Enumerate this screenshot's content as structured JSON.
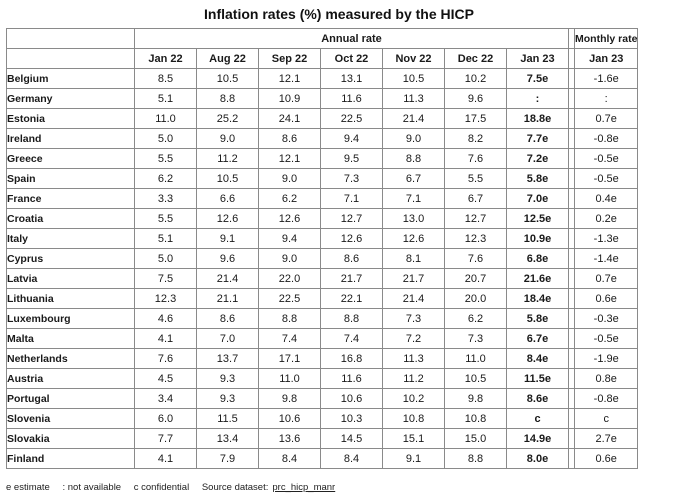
{
  "title": "Inflation rates (%) measured by the HICP",
  "header": {
    "annual_rate": "Annual rate",
    "monthly_rate": "Monthly rate",
    "columns": [
      "Jan 22",
      "Aug 22",
      "Sep 22",
      "Oct 22",
      "Nov 22",
      "Dec 22",
      "Jan 23"
    ],
    "monthly_column": "Jan 23"
  },
  "rows": [
    {
      "country": "Belgium",
      "values": [
        "8.5",
        "10.5",
        "12.1",
        "13.1",
        "10.5",
        "10.2",
        "7.5e"
      ],
      "monthly": "-1.6e"
    },
    {
      "country": "Germany",
      "values": [
        "5.1",
        "8.8",
        "10.9",
        "11.6",
        "11.3",
        "9.6",
        ":"
      ],
      "monthly": ":"
    },
    {
      "country": "Estonia",
      "values": [
        "11.0",
        "25.2",
        "24.1",
        "22.5",
        "21.4",
        "17.5",
        "18.8e"
      ],
      "monthly": "0.7e"
    },
    {
      "country": "Ireland",
      "values": [
        "5.0",
        "9.0",
        "8.6",
        "9.4",
        "9.0",
        "8.2",
        "7.7e"
      ],
      "monthly": "-0.8e"
    },
    {
      "country": "Greece",
      "values": [
        "5.5",
        "11.2",
        "12.1",
        "9.5",
        "8.8",
        "7.6",
        "7.2e"
      ],
      "monthly": "-0.5e"
    },
    {
      "country": "Spain",
      "values": [
        "6.2",
        "10.5",
        "9.0",
        "7.3",
        "6.7",
        "5.5",
        "5.8e"
      ],
      "monthly": "-0.5e"
    },
    {
      "country": "France",
      "values": [
        "3.3",
        "6.6",
        "6.2",
        "7.1",
        "7.1",
        "6.7",
        "7.0e"
      ],
      "monthly": "0.4e"
    },
    {
      "country": "Croatia",
      "values": [
        "5.5",
        "12.6",
        "12.6",
        "12.7",
        "13.0",
        "12.7",
        "12.5e"
      ],
      "monthly": "0.2e"
    },
    {
      "country": "Italy",
      "values": [
        "5.1",
        "9.1",
        "9.4",
        "12.6",
        "12.6",
        "12.3",
        "10.9e"
      ],
      "monthly": "-1.3e"
    },
    {
      "country": "Cyprus",
      "values": [
        "5.0",
        "9.6",
        "9.0",
        "8.6",
        "8.1",
        "7.6",
        "6.8e"
      ],
      "monthly": "-1.4e"
    },
    {
      "country": "Latvia",
      "values": [
        "7.5",
        "21.4",
        "22.0",
        "21.7",
        "21.7",
        "20.7",
        "21.6e"
      ],
      "monthly": "0.7e"
    },
    {
      "country": "Lithuania",
      "values": [
        "12.3",
        "21.1",
        "22.5",
        "22.1",
        "21.4",
        "20.0",
        "18.4e"
      ],
      "monthly": "0.6e"
    },
    {
      "country": "Luxembourg",
      "values": [
        "4.6",
        "8.6",
        "8.8",
        "8.8",
        "7.3",
        "6.2",
        "5.8e"
      ],
      "monthly": "-0.3e"
    },
    {
      "country": "Malta",
      "values": [
        "4.1",
        "7.0",
        "7.4",
        "7.4",
        "7.2",
        "7.3",
        "6.7e"
      ],
      "monthly": "-0.5e"
    },
    {
      "country": "Netherlands",
      "values": [
        "7.6",
        "13.7",
        "17.1",
        "16.8",
        "11.3",
        "11.0",
        "8.4e"
      ],
      "monthly": "-1.9e"
    },
    {
      "country": "Austria",
      "values": [
        "4.5",
        "9.3",
        "11.0",
        "11.6",
        "11.2",
        "10.5",
        "11.5e"
      ],
      "monthly": "0.8e"
    },
    {
      "country": "Portugal",
      "values": [
        "3.4",
        "9.3",
        "9.8",
        "10.6",
        "10.2",
        "9.8",
        "8.6e"
      ],
      "monthly": "-0.8e"
    },
    {
      "country": "Slovenia",
      "values": [
        "6.0",
        "11.5",
        "10.6",
        "10.3",
        "10.8",
        "10.8",
        "c"
      ],
      "monthly": "c"
    },
    {
      "country": "Slovakia",
      "values": [
        "7.7",
        "13.4",
        "13.6",
        "14.5",
        "15.1",
        "15.0",
        "14.9e"
      ],
      "monthly": "2.7e"
    },
    {
      "country": "Finland",
      "values": [
        "4.1",
        "7.9",
        "8.4",
        "8.4",
        "9.1",
        "8.8",
        "8.0e"
      ],
      "monthly": "0.6e"
    }
  ],
  "footnote": {
    "estimate": "e estimate",
    "not_available": ": not available",
    "confidential": "c confidential",
    "source_label": "Source dataset:",
    "source_link": "prc_hicp_manr"
  }
}
